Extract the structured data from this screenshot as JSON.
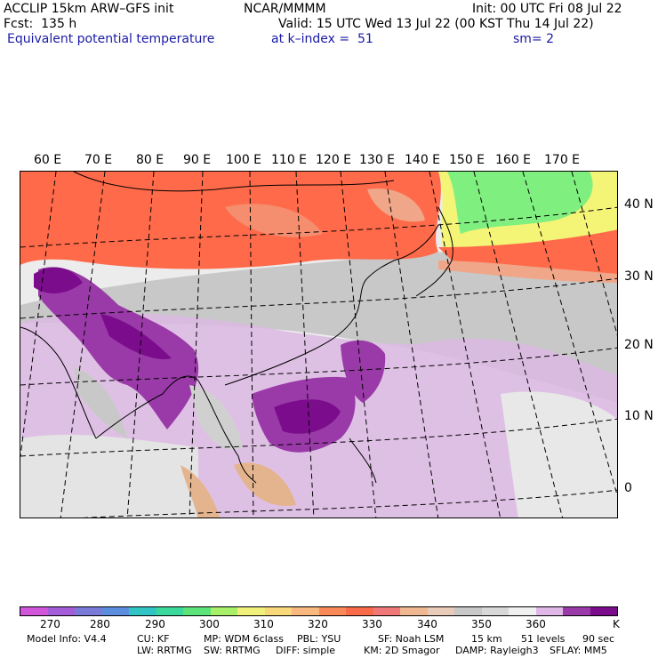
{
  "header": {
    "model_title": "ACCLIP 15km ARW–GFS init",
    "center": "NCAR/MMMM",
    "init": "Init: 00 UTC Fri 08 Jul 22",
    "fcst": "Fcst:  135 h",
    "valid": "Valid: 15 UTC Wed 13 Jul 22 (00 KST Thu 14 Jul 22)",
    "field": "Equivalent potential temperature",
    "level": "at k–index =  51",
    "smooth": "sm= 2"
  },
  "map": {
    "lon_labels": [
      "60 E",
      "70 E",
      "80 E",
      "90 E",
      "100 E",
      "110 E",
      "120 E",
      "130 E",
      "140 E",
      "150 E",
      "160 E",
      "170 E"
    ],
    "lat_labels": [
      "40 N",
      "30 N",
      "20 N",
      "10 N",
      "0"
    ],
    "colors": {
      "warm": "#ff6a4a",
      "cool_green": "#7ff07f",
      "yellow": "#f4f477",
      "pale_purple": "#ddb8e4",
      "purple": "#9a3aa8",
      "dark_purple": "#7b0c8c",
      "gray": "#c8c8c8",
      "land_tan": "#e4b48e"
    }
  },
  "colorbar": {
    "unit": "K",
    "labels": [
      "270",
      "280",
      "290",
      "300",
      "310",
      "320",
      "330",
      "340",
      "350",
      "360"
    ],
    "colors": [
      "#d055d8",
      "#a45cd8",
      "#7a7ad8",
      "#5c8ee0",
      "#30c4c4",
      "#3ad89a",
      "#5ce47a",
      "#a8f06a",
      "#f0f07a",
      "#f8d878",
      "#f8b880",
      "#f88858",
      "#f86a4a",
      "#f07878",
      "#f0b890",
      "#e8cbb8",
      "#c8c8c8",
      "#d8d8d8",
      "#f0f0f0",
      "#e0b8e8",
      "#9a3aa8",
      "#7b0c8c"
    ]
  },
  "footer": {
    "line1": [
      "Model Info: V4.4",
      "CU: KF",
      "MP: WDM 6class",
      "PBL: YSU",
      "SF: Noah LSM",
      "15 km",
      "51 levels",
      "90 sec"
    ],
    "line2": [
      "LW: RRTMG",
      "SW: RRTMG",
      "DIFF: simple",
      "KM: 2D Smagor",
      "DAMP: Rayleigh3",
      "SFLAY: MM5"
    ]
  }
}
